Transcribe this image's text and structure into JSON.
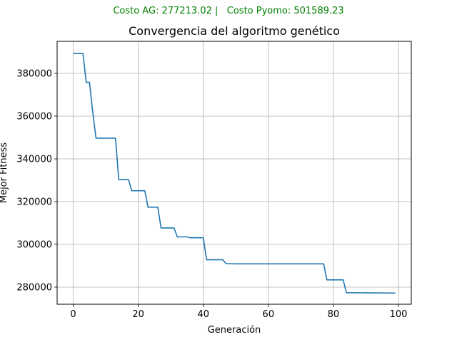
{
  "suptitle": "Costo AG: 277213.02 |   Costo Pyomo: 501589.23",
  "colors": {
    "line": "#1f77b4",
    "grid": "#b0b0b0",
    "suptitle": "#008000"
  },
  "chart_data": {
    "type": "line",
    "title": "Convergencia del algoritmo genético",
    "xlabel": "Generación",
    "ylabel": "Mejor Fitness",
    "xlim": [
      -4.95,
      103.95
    ],
    "ylim": [
      272000,
      395000
    ],
    "xticks": [
      0,
      20,
      40,
      60,
      80,
      100
    ],
    "yticks": [
      280000,
      300000,
      320000,
      340000,
      360000,
      380000
    ],
    "grid": true,
    "series": [
      {
        "x": [
          0,
          3,
          4,
          5,
          6,
          7,
          13,
          14,
          17,
          18,
          22,
          23,
          26,
          27,
          31,
          32,
          35,
          36,
          40,
          41,
          46,
          47,
          50,
          77,
          78,
          83,
          84,
          99
        ],
        "y": [
          389300,
          389300,
          375800,
          375800,
          362000,
          349700,
          349700,
          330300,
          330300,
          325100,
          325100,
          317400,
          317400,
          307700,
          307700,
          303500,
          303500,
          303100,
          303100,
          292800,
          292800,
          291000,
          290900,
          290900,
          283400,
          283400,
          277400,
          277213
        ]
      }
    ]
  }
}
